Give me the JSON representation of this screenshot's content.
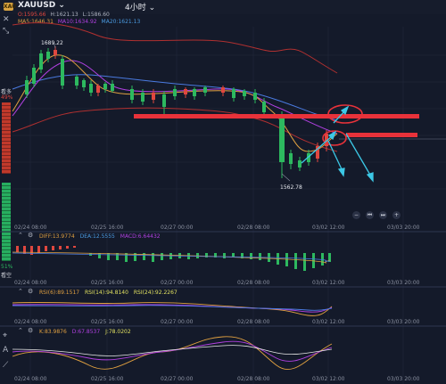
{
  "header": {
    "logo_text": "XAU",
    "symbol": "XAUUSD",
    "symbol_chevron": "⌄",
    "timeframe": "4小时",
    "timeframe_chevron": "⌄",
    "ohlc": [
      "O:1595.66",
      "H:1621.13",
      "L:1586.60"
    ],
    "ma": [
      "MA5:1646.31",
      "MA10:1634.92",
      "MA20:1621.13"
    ]
  },
  "price_panel": {
    "high_label": "1689.22",
    "low_label": "1562.78",
    "time_labels": [
      "02/24 08:00",
      "02/25 16:00",
      "02/27 00:00",
      "02/28 08:00",
      "03/02 12:00",
      "03/03 20:00"
    ]
  },
  "side_labels": {
    "bull": "看多",
    "bull_pct": "49%",
    "bear_pct": "51%",
    "bear": "看空"
  },
  "macd": {
    "values": [
      "DIFF:13.9774",
      "DEA:12.5555",
      "MACD:6.64432"
    ],
    "time_labels": [
      "02/24 08:00",
      "02/25 16:00",
      "02/27 00:00",
      "02/28 08:00",
      "03/02 12:00",
      "03/03 20:00"
    ]
  },
  "rsi": {
    "values": [
      "RSI(6):89.1517",
      "RSI(14):94.8140",
      "RSI(24):92.2267"
    ],
    "time_labels": [
      "02/24 08:00",
      "02/25 16:00",
      "02/27 00:00",
      "02/28 08:00",
      "03/02 12:00",
      "03/03 20:00"
    ]
  },
  "kdj": {
    "values": [
      "K:83.9876",
      "D:67.8537",
      "J:78.0202"
    ],
    "time_labels": [
      "02/24 08:00",
      "02/25 16:00",
      "02/27 00:00",
      "02/28 08:00",
      "03/02 12:00",
      "03/03 20:00"
    ]
  },
  "nav": {
    "zoom_out": "−",
    "prev": "⏮",
    "next": "⏭",
    "zoom_in": "+"
  },
  "colors": {
    "up": "#2db95f",
    "down": "#e0473f",
    "ma5": "#e0a040",
    "ma10": "#b040e0",
    "ma20": "#4a7ae0",
    "boll": "#b03030",
    "annotation": "#e8323a",
    "arrow": "#3cc8e6"
  },
  "icons": [
    "cross-icon",
    "crosshair-icon",
    "tool-icon",
    "text-icon",
    "gear-icon"
  ]
}
